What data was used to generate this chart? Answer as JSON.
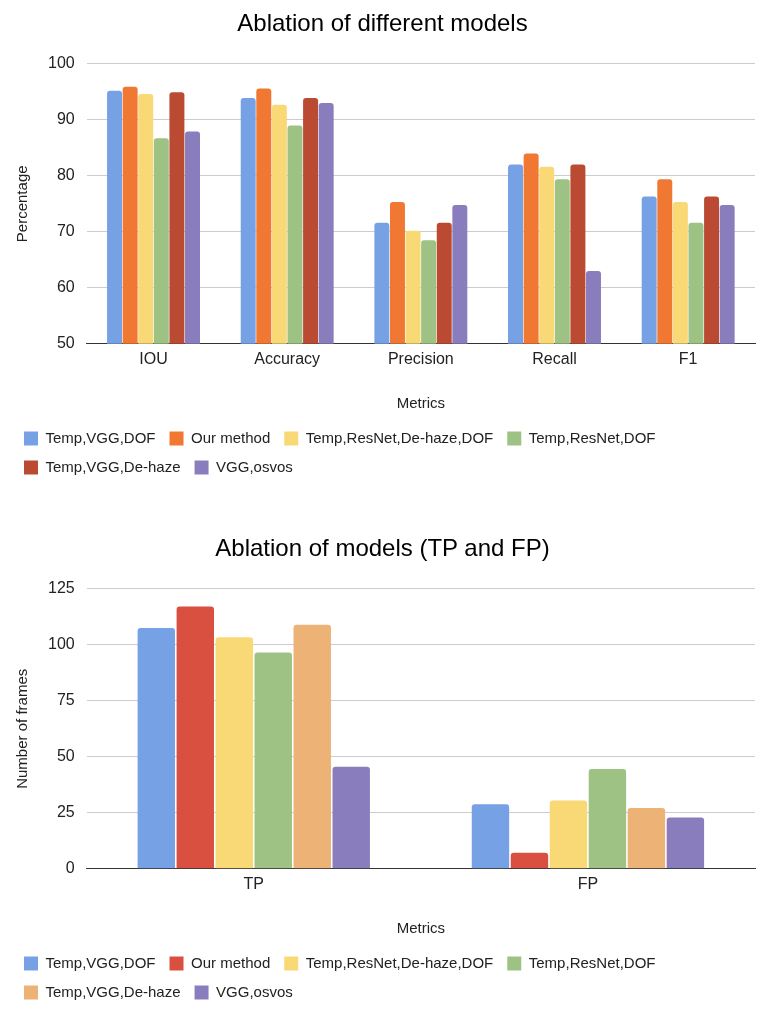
{
  "chart_data": [
    {
      "type": "bar",
      "title": "Ablation of different models",
      "xlabel": "Metrics",
      "ylabel": "Percentage",
      "categories": [
        "IOU",
        "Accuracy",
        "Precision",
        "Recall",
        "F1"
      ],
      "series": [
        {
          "name": "Temp,VGG,DOF",
          "color": "#77a1e5",
          "values": [
            95.2,
            93.9,
            71.6,
            82.0,
            76.3
          ]
        },
        {
          "name": "Our method",
          "color": "#f07833",
          "values": [
            95.9,
            95.6,
            75.3,
            84.0,
            79.4
          ]
        },
        {
          "name": "Temp,ResNet,De-haze,DOF",
          "color": "#f9d876",
          "values": [
            94.6,
            92.7,
            70.2,
            81.6,
            75.3
          ]
        },
        {
          "name": "Temp,ResNet,DOF",
          "color": "#9ec283",
          "values": [
            86.7,
            89.0,
            68.5,
            79.4,
            71.6
          ]
        },
        {
          "name": "Temp,VGG,De-haze",
          "color": "#bb4a33",
          "values": [
            94.9,
            93.9,
            71.6,
            82.0,
            76.3
          ]
        },
        {
          "name": "VGG,osvos",
          "color": "#8a7dbe",
          "values": [
            87.9,
            93.0,
            74.8,
            63.0,
            74.8
          ]
        }
      ],
      "ylim": [
        50,
        100
      ],
      "yticks": [
        50,
        60,
        70,
        80,
        90,
        100
      ],
      "grid": "y",
      "legend": "bottom"
    },
    {
      "type": "bar",
      "title": "Ablation of models (TP and FP)",
      "xlabel": "Metrics",
      "ylabel": "Number of frames",
      "categories": [
        "TP",
        "FP"
      ],
      "series": [
        {
          "name": "Temp,VGG,DOF",
          "color": "#77a1e5",
          "values": [
            107.5,
            28.8
          ]
        },
        {
          "name": "Our method",
          "color": "#d95040",
          "values": [
            117.1,
            7.2
          ]
        },
        {
          "name": "Temp,ResNet,De-haze,DOF",
          "color": "#f9d876",
          "values": [
            103.4,
            30.5
          ]
        },
        {
          "name": "Temp,ResNet,DOF",
          "color": "#9ec283",
          "values": [
            96.6,
            44.5
          ]
        },
        {
          "name": "Temp,VGG,De-haze",
          "color": "#edb276",
          "values": [
            108.9,
            27.1
          ]
        },
        {
          "name": "VGG,osvos",
          "color": "#8a7dbe",
          "values": [
            45.6,
            22.9
          ]
        }
      ],
      "ylim": [
        0,
        125
      ],
      "yticks": [
        0,
        25,
        50,
        75,
        100,
        125
      ],
      "grid": "y",
      "legend": "bottom"
    }
  ]
}
